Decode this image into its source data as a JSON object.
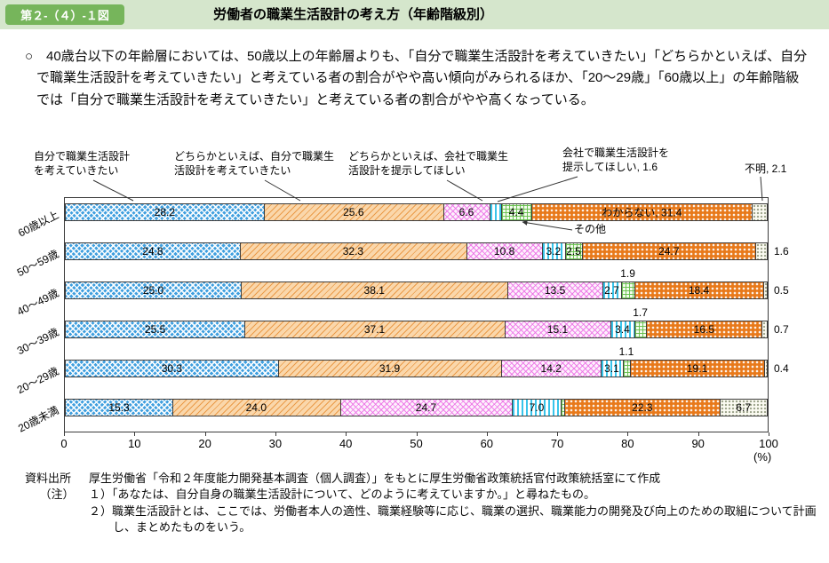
{
  "header": {
    "figure_label": "第２-（４）-１図",
    "title": "労働者の職業生活設計の考え方（年齢階級別）"
  },
  "summary": {
    "text": "○　40歳台以下の年齢層においては、50歳以上の年齢層よりも、「自分で職業生活設計を考えていきたい」「どちらかといえば、自分で職業生活設計を考えていきたい」と考えている者の割合がやや高い傾向がみられるほか、「20～29歳」「60歳以上」の年齢階級では「自分で職業生活設計を考えていきたい」と考えている者の割合がやや高くなっている。"
  },
  "chart_data": {
    "type": "bar",
    "orientation": "horizontal_stacked",
    "unit": "(%)",
    "xlim": [
      0,
      100
    ],
    "x_ticks": [
      0,
      10,
      20,
      30,
      40,
      50,
      60,
      70,
      80,
      90,
      100
    ],
    "series_names": [
      "自分で職業生活設計を考えていきたい",
      "どちらかといえば、自分で職業生活設計を考えていきたい",
      "どちらかといえば、会社で職業生活設計を提示してほしい",
      "会社で職業生活設計を提示してほしい",
      "その他",
      "わからない",
      "不明"
    ],
    "categories": [
      "60歳以上",
      "50～59歳",
      "40～49歳",
      "30～39歳",
      "20～29歳",
      "20歳未満"
    ],
    "rows": [
      {
        "category": "60歳以上",
        "values": [
          28.2,
          25.6,
          6.6,
          1.6,
          4.4,
          31.4,
          2.1
        ],
        "labels": [
          "28.2",
          "25.6",
          "6.6",
          "",
          "4.4",
          "わからない, 31.4",
          ""
        ],
        "label_pos": [
          "in",
          "in",
          "in",
          "none",
          "in",
          "in",
          "none"
        ]
      },
      {
        "category": "50～59歳",
        "values": [
          24.8,
          32.3,
          10.8,
          3.2,
          2.5,
          24.7,
          1.6
        ],
        "labels": [
          "24.8",
          "32.3",
          "10.8",
          "3.2",
          "2.5",
          "24.7",
          "1.6"
        ],
        "label_pos": [
          "in",
          "in",
          "in",
          "in",
          "in",
          "in",
          "right"
        ]
      },
      {
        "category": "40～49歳",
        "values": [
          25.0,
          38.1,
          13.5,
          2.7,
          1.9,
          18.4,
          0.5
        ],
        "labels": [
          "25.0",
          "38.1",
          "13.5",
          "2.7",
          "1.9",
          "18.4",
          "0.5"
        ],
        "label_pos": [
          "in",
          "in",
          "in",
          "in",
          "above",
          "in",
          "right"
        ]
      },
      {
        "category": "30～39歳",
        "values": [
          25.5,
          37.1,
          15.1,
          3.4,
          1.7,
          16.5,
          0.7
        ],
        "labels": [
          "25.5",
          "37.1",
          "15.1",
          "3.4",
          "1.7",
          "16.5",
          "0.7"
        ],
        "label_pos": [
          "in",
          "in",
          "in",
          "in",
          "above",
          "in",
          "right"
        ]
      },
      {
        "category": "20～29歳",
        "values": [
          30.3,
          31.9,
          14.2,
          3.1,
          1.1,
          19.1,
          0.4
        ],
        "labels": [
          "30.3",
          "31.9",
          "14.2",
          "3.1",
          "1.1",
          "19.1",
          "0.4"
        ],
        "label_pos": [
          "in",
          "in",
          "in",
          "in",
          "above",
          "in",
          "right"
        ]
      },
      {
        "category": "20歳未満",
        "values": [
          15.3,
          24.0,
          24.7,
          7.0,
          0.5,
          22.3,
          6.7
        ],
        "labels": [
          "15.3",
          "24.0",
          "24.7",
          "7.0",
          "",
          "22.3",
          "6.7"
        ],
        "label_pos": [
          "in",
          "in",
          "in",
          "in",
          "none",
          "in",
          "in"
        ]
      }
    ]
  },
  "annotations": {
    "self_design": "自分で職業生活設計\nを考えていきたい",
    "rather_self": "どちらかといえば、自分で職業生\n活設計を考えていきたい",
    "rather_company": "どちらかといえば、会社で職業生\n活設計を提示してほしい",
    "company": "会社で職業生活設計を\n提示してほしい, 1.6",
    "unknown": "不明, 2.1",
    "other": "その他"
  },
  "footer": {
    "source_label": "資料出所",
    "source_text": "厚生労働省「令和２年度能力開発基本調査（個人調査）」をもとに厚生労働省政策統括官付政策統括室にて作成",
    "note_label": "（注）",
    "notes": [
      "１）「あなたは、自分自身の職業生活設計について、どのように考えていますか。」と尋ねたもの。",
      "２）職業生活設計とは、ここでは、労働者本人の適性、職業経験等に応じ、職業の選択、職業能力の開発及び向上のための取組について計画し、まとめたものをいう。"
    ]
  },
  "colors": {
    "header_band": "#d5e6cc",
    "figure_badge": "#76b55b",
    "series": [
      "#3f9fdf",
      "#fad7ab",
      "#ec6ee5",
      "#38c4ea",
      "#62be48",
      "#e8791a",
      "#fbfbf2"
    ]
  }
}
